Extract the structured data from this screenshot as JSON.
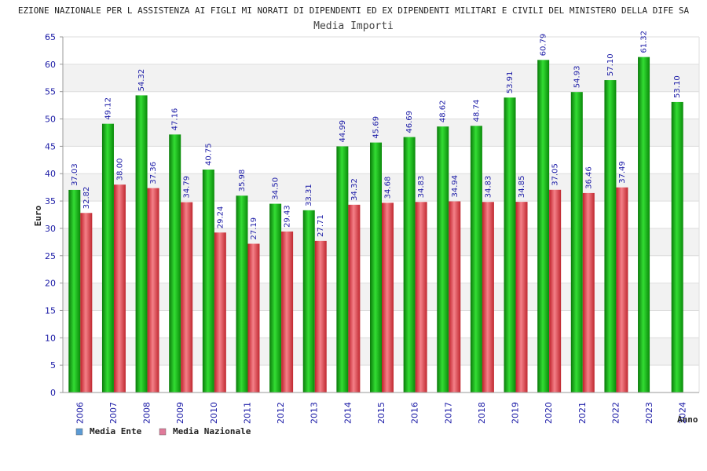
{
  "chart_data": {
    "type": "bar",
    "title": "EZIONE NAZIONALE PER L ASSISTENZA AI FIGLI MI NORATI DI DIPENDENTI ED EX DIPENDENTI MILITARI E CIVILI DEL MINISTERO DELLA DIFE SA",
    "subtitle": "Media Importi",
    "ylabel": "Euro",
    "xlabel": "Anno",
    "ylim": [
      0,
      65
    ],
    "yticks": [
      0,
      5,
      10,
      15,
      20,
      25,
      30,
      35,
      40,
      45,
      50,
      55,
      60,
      65
    ],
    "grid": true,
    "legend_position": "bottom-left",
    "categories": [
      "2006",
      "2007",
      "2008",
      "2009",
      "2010",
      "2011",
      "2012",
      "2013",
      "2014",
      "2015",
      "2016",
      "2017",
      "2018",
      "2019",
      "2020",
      "2021",
      "2022",
      "2023",
      "2024"
    ],
    "series": [
      {
        "name": "Media Ente",
        "legend_color": "#5b9bd5",
        "bar_color": "#22bb22",
        "values": [
          37.03,
          49.12,
          54.32,
          47.16,
          40.75,
          35.98,
          34.5,
          33.31,
          44.99,
          45.69,
          46.69,
          48.62,
          48.74,
          53.91,
          60.79,
          54.93,
          57.1,
          61.32,
          53.1
        ],
        "labels": [
          "37.03",
          "49.12",
          "54.32",
          "47.16",
          "40.75",
          "35.98",
          "34.50",
          "33.31",
          "44.99",
          "45.69",
          "46.69",
          "48.62",
          "48.74",
          "53.91",
          "60.79",
          "54.93",
          "57.10",
          "61.32",
          "53.10"
        ]
      },
      {
        "name": "Media Nazionale",
        "legend_color": "#e07a9a",
        "bar_color": "#e8505a",
        "values": [
          32.82,
          38.0,
          37.36,
          34.79,
          29.24,
          27.19,
          29.43,
          27.71,
          34.32,
          34.68,
          34.83,
          34.94,
          34.83,
          34.85,
          37.05,
          36.46,
          37.49,
          null,
          null
        ],
        "labels": [
          "32.82",
          "38.00",
          "37.36",
          "34.79",
          "29.24",
          "27.19",
          "29.43",
          "27.71",
          "34.32",
          "34.68",
          "34.83",
          "34.94",
          "34.83",
          "34.85",
          "37.05",
          "36.46",
          "37.49",
          null,
          null
        ]
      }
    ]
  }
}
